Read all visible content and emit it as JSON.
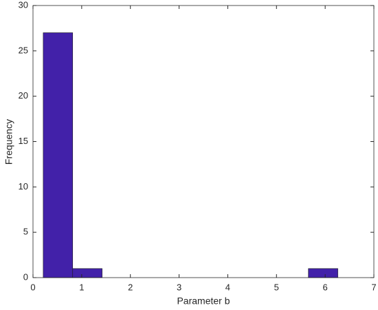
{
  "chart_data": {
    "type": "histogram",
    "bins": [
      0.21,
      0.815,
      1.42,
      2.025,
      2.63,
      3.235,
      3.84,
      4.445,
      5.05,
      5.655,
      6.26
    ],
    "values": [
      27,
      1,
      0,
      0,
      0,
      0,
      0,
      0,
      0,
      1
    ],
    "color": "#4221a9",
    "xlabel": "Parameter b",
    "ylabel": "Frequency",
    "xlim": [
      0,
      7
    ],
    "xticks": [
      0,
      1,
      2,
      3,
      4,
      5,
      6,
      7
    ],
    "ylim": [
      0,
      30
    ],
    "yticks": [
      0,
      5,
      10,
      15,
      20,
      25,
      30
    ],
    "grid": false
  }
}
